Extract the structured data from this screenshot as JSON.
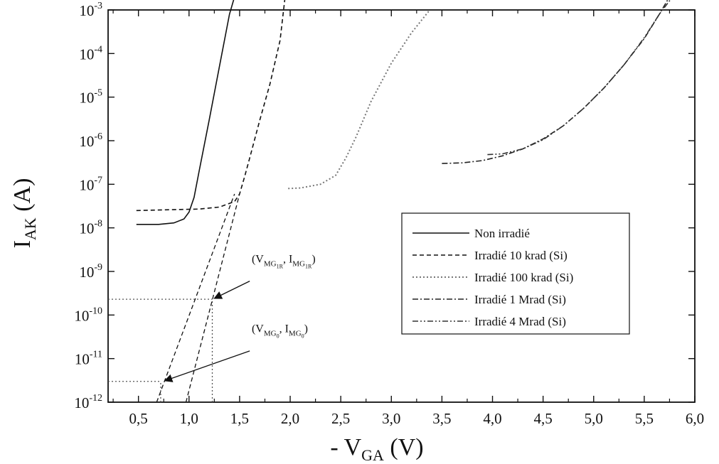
{
  "chart_data": {
    "type": "line",
    "title": "",
    "ylabel": {
      "main": "I",
      "sub": "AK",
      "unit": " (A)"
    },
    "xlabel": {
      "prefix": "- V",
      "sub": "GA",
      "unit": " (V)"
    },
    "xlim": [
      0.2,
      6.0
    ],
    "ylim": [
      1e-12,
      0.001
    ],
    "yscale": "log",
    "x_ticks": [
      0.5,
      1.0,
      1.5,
      2.0,
      2.5,
      3.0,
      3.5,
      4.0,
      4.5,
      5.0,
      5.5,
      6.0
    ],
    "x_tick_labels": [
      "0,5",
      "1,0",
      "1,5",
      "2,0",
      "2,5",
      "3,0",
      "3,5",
      "4,0",
      "4,5",
      "5,0",
      "5,5",
      "6,0"
    ],
    "y_ticks": [
      {
        "mantissa": "10",
        "exp": "-12"
      },
      {
        "mantissa": "10",
        "exp": "-11"
      },
      {
        "mantissa": "10",
        "exp": "-10"
      },
      {
        "mantissa": "10",
        "exp": "-9"
      },
      {
        "mantissa": "10",
        "exp": "-8"
      },
      {
        "mantissa": "10",
        "exp": "-7"
      },
      {
        "mantissa": "10",
        "exp": "-6"
      },
      {
        "mantissa": "10",
        "exp": "-5"
      },
      {
        "mantissa": "10",
        "exp": "-4"
      },
      {
        "mantissa": "10",
        "exp": "-3"
      }
    ],
    "grid": false,
    "legend_position": "center-right",
    "series": [
      {
        "name": "Non irradié",
        "style": "solid",
        "x": [
          0.48,
          0.7,
          0.85,
          0.95,
          1.0,
          1.05,
          1.1,
          1.2,
          1.3,
          1.4,
          1.45
        ],
        "y": [
          1.2e-08,
          1.2e-08,
          1.3e-08,
          1.6e-08,
          2.3e-08,
          5e-08,
          2e-07,
          3e-06,
          5e-05,
          0.0008,
          0.002
        ]
      },
      {
        "name": "Irradié 10 krad (Si)",
        "style": "dashed",
        "x": [
          0.48,
          0.8,
          1.1,
          1.3,
          1.45,
          1.5,
          1.55,
          1.6,
          1.7,
          1.8,
          1.9,
          1.95
        ],
        "y": [
          2.5e-08,
          2.6e-08,
          2.7e-08,
          3e-08,
          4e-08,
          6e-08,
          1.5e-07,
          4e-07,
          3e-06,
          2e-05,
          0.0002,
          0.002
        ]
      },
      {
        "name": "Irradié 100 krad (Si)",
        "style": "dotted",
        "x": [
          1.98,
          2.1,
          2.3,
          2.45,
          2.55,
          2.65,
          2.8,
          3.0,
          3.2,
          3.38
        ],
        "y": [
          8e-08,
          8.2e-08,
          1e-07,
          1.6e-07,
          4e-07,
          1.2e-06,
          8e-06,
          6e-05,
          0.0003,
          0.001
        ]
      },
      {
        "name": "Irradié 1 Mrad (Si)",
        "style": "dashdot",
        "x": [
          3.5,
          3.7,
          3.9,
          4.1,
          4.3,
          4.5,
          4.7,
          4.9,
          5.1,
          5.3,
          5.5,
          5.65,
          5.75
        ],
        "y": [
          3e-07,
          3.1e-07,
          3.5e-07,
          4.5e-07,
          6.5e-07,
          1.1e-06,
          2.2e-06,
          5.5e-06,
          1.6e-05,
          5.5e-05,
          0.00022,
          0.0008,
          0.002
        ]
      },
      {
        "name": "Irradié 4 Mrad (Si)",
        "style": "dashdotdot",
        "x": [
          3.95,
          4.1,
          4.3,
          4.5,
          4.7,
          4.9,
          5.1,
          5.3,
          5.5,
          5.65,
          5.78
        ],
        "y": [
          4.8e-07,
          5e-07,
          6.5e-07,
          1.05e-06,
          2.2e-06,
          5.5e-06,
          1.6e-05,
          5.5e-05,
          0.00023,
          0.0008,
          0.002
        ]
      }
    ],
    "extrapolations": [
      {
        "x": [
          0.68,
          1.45
        ],
        "y": [
          1e-12,
          6e-08
        ]
      },
      {
        "x": [
          0.97,
          1.5
        ],
        "y": [
          1e-12,
          6e-08
        ]
      }
    ],
    "reference_lines": [
      {
        "type": "horizontal",
        "y": 2.3e-10,
        "x_range": [
          0.2,
          1.23
        ]
      },
      {
        "type": "horizontal",
        "y": 3e-12,
        "x_range": [
          0.2,
          0.72
        ]
      },
      {
        "type": "vertical",
        "x": 1.23,
        "y_range": [
          1e-12,
          2.3e-10
        ]
      },
      {
        "type": "vertical",
        "x": 0.72,
        "y_range": [
          1e-12,
          3e-12
        ]
      }
    ],
    "annotations": [
      {
        "id": "ann1",
        "parts": {
          "open": "(V",
          "sub1": "MG",
          "subsub1": "1R",
          "sep": ", I",
          "sub2": "MG",
          "subsub2": "1R",
          "close": ")"
        },
        "text_at": [
          1.62,
          1.6e-09
        ],
        "arrow_from": [
          1.6,
          6e-10
        ],
        "arrow_to": [
          1.25,
          2.4e-10
        ]
      },
      {
        "id": "ann2",
        "parts": {
          "open": "(V",
          "sub1": "MG",
          "subsub1": "0",
          "sep": ", I",
          "sub2": "MG",
          "subsub2": "0",
          "close": ")"
        },
        "text_at": [
          1.62,
          4e-11
        ],
        "arrow_from": [
          1.6,
          1.5e-11
        ],
        "arrow_to": [
          0.76,
          3.1e-12
        ]
      }
    ]
  }
}
